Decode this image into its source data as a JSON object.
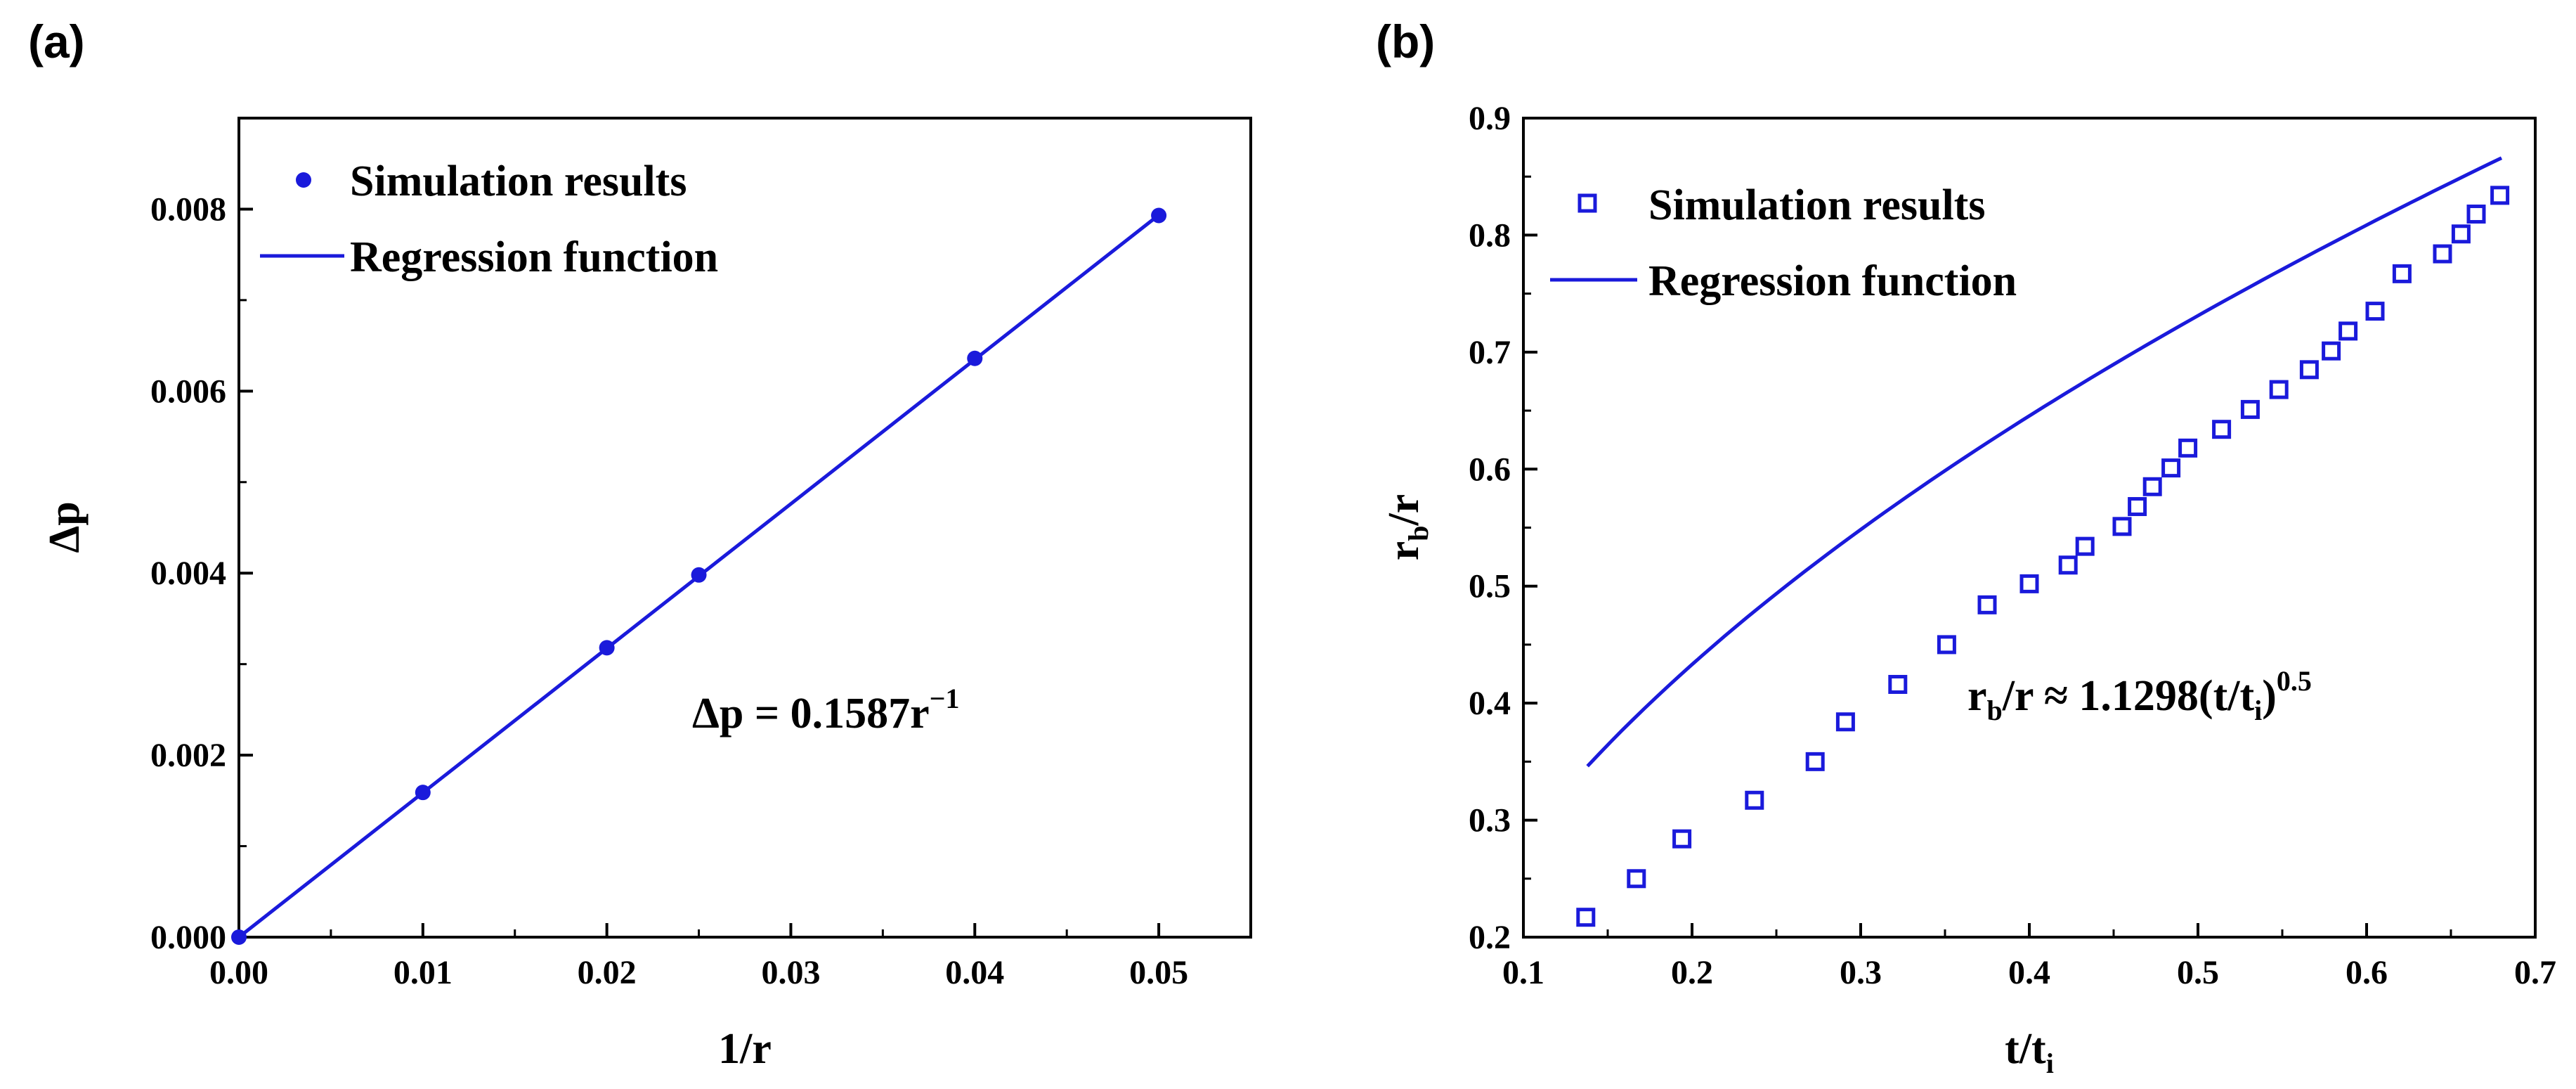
{
  "colors": {
    "series": "#1a1adb",
    "axis": "#000000",
    "background": "#ffffff"
  },
  "chart_data": [
    {
      "panel_label": "(a)",
      "type": "scatter",
      "title": "",
      "xlabel": "1/r",
      "ylabel": "Δp",
      "xlim": [
        0.0,
        0.055
      ],
      "ylim": [
        0.0,
        0.009
      ],
      "xticks": [
        0.0,
        0.01,
        0.02,
        0.03,
        0.04,
        0.05
      ],
      "xtick_labels": [
        "0.00",
        "0.01",
        "0.02",
        "0.03",
        "0.04",
        "0.05"
      ],
      "yticks": [
        0.0,
        0.002,
        0.004,
        0.006,
        0.008
      ],
      "ytick_labels": [
        "0.000",
        "0.002",
        "0.004",
        "0.006",
        "0.008"
      ],
      "series": [
        {
          "name": "Simulation results",
          "marker": "filled-circle",
          "x": [
            0.0,
            0.01,
            0.02,
            0.025,
            0.04,
            0.05
          ],
          "y": [
            0.0,
            0.00159,
            0.00318,
            0.00398,
            0.00636,
            0.00793
          ]
        },
        {
          "name": "Regression function",
          "style": "line",
          "x": [
            0.0,
            0.05
          ],
          "y": [
            0.0,
            0.007935
          ]
        }
      ],
      "legend": [
        "Simulation results",
        "Regression function"
      ],
      "legend_position": "top-left",
      "annotation": {
        "main": "Δp = 0.1587r",
        "sup": "−1"
      }
    },
    {
      "panel_label": "(b)",
      "type": "scatter",
      "title": "",
      "xlabel": {
        "main": "t/t",
        "sub": "i"
      },
      "ylabel": {
        "main": "r",
        "sub": "b",
        "tail": "/r"
      },
      "xlim": [
        0.1,
        0.7
      ],
      "ylim": [
        0.2,
        0.9
      ],
      "xticks": [
        0.1,
        0.2,
        0.3,
        0.4,
        0.5,
        0.6,
        0.7
      ],
      "xtick_labels": [
        "0.1",
        "0.2",
        "0.3",
        "0.4",
        "0.5",
        "0.6",
        "0.7"
      ],
      "yticks": [
        0.2,
        0.3,
        0.4,
        0.5,
        0.6,
        0.7,
        0.8,
        0.9
      ],
      "ytick_labels": [
        "0.2",
        "0.3",
        "0.4",
        "0.5",
        "0.6",
        "0.7",
        "0.8",
        "0.9"
      ],
      "series": [
        {
          "name": "Simulation results",
          "marker": "open-square",
          "x": [
            0.137,
            0.167,
            0.194,
            0.237,
            0.273,
            0.291,
            0.322,
            0.351,
            0.375,
            0.4,
            0.423,
            0.433,
            0.455,
            0.464,
            0.473,
            0.484,
            0.494,
            0.514,
            0.531,
            0.548,
            0.566,
            0.579,
            0.589,
            0.605,
            0.621,
            0.645,
            0.656,
            0.665,
            0.679
          ],
          "y": [
            0.217,
            0.25,
            0.284,
            0.317,
            0.35,
            0.384,
            0.416,
            0.45,
            0.484,
            0.502,
            0.518,
            0.534,
            0.551,
            0.568,
            0.585,
            0.601,
            0.618,
            0.634,
            0.651,
            0.668,
            0.685,
            0.701,
            0.718,
            0.735,
            0.767,
            0.784,
            0.801,
            0.818,
            0.834
          ]
        },
        {
          "name": "Regression function",
          "style": "curve",
          "formula": "y = 1.1298 * sqrt(x/0.97) - 0.08",
          "x_range": [
            0.138,
            0.68
          ]
        }
      ],
      "legend": [
        "Simulation results",
        "Regression function"
      ],
      "legend_position": "top-left",
      "annotation": {
        "p1": "r",
        "p1_sub": "b",
        "p2": "/r ≈ 1.1298(t/t",
        "p2_sub": "i",
        "p3": ")",
        "p3_sup": "0.5"
      }
    }
  ]
}
